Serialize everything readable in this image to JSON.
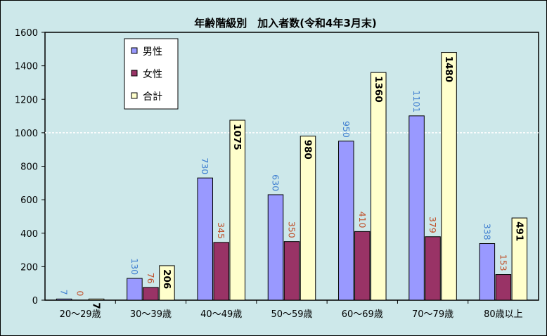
{
  "chart_data": {
    "type": "bar",
    "title": "年齢階級別　加入者数(令和4年3月末)",
    "categories": [
      "20〜29歳",
      "30〜39歳",
      "40〜49歳",
      "50〜59歳",
      "60〜69歳",
      "70〜79歳",
      "80歳以上"
    ],
    "series": [
      {
        "name": "男性",
        "values": [
          7,
          130,
          730,
          630,
          950,
          1101,
          338
        ],
        "color": "#9999ff",
        "label_color": "#3f7fd0"
      },
      {
        "name": "女性",
        "values": [
          0,
          76,
          345,
          350,
          410,
          379,
          153
        ],
        "color": "#993366",
        "label_color": "#c0502a"
      },
      {
        "name": "合計",
        "values": [
          7,
          206,
          1075,
          980,
          1360,
          1480,
          491
        ],
        "color": "#ffffcc",
        "label_color": "#000000"
      }
    ],
    "data_labels": [
      [
        "7",
        "130",
        "730",
        "630",
        "950",
        "1101",
        "338"
      ],
      [
        "0",
        "76",
        "345",
        "350",
        "410",
        "379",
        "153"
      ],
      [
        "7",
        "206",
        "1075",
        "980",
        "1360",
        "1480",
        "491"
      ]
    ],
    "yticks": [
      0,
      200,
      400,
      600,
      800,
      1000,
      1200,
      1400,
      1600
    ],
    "ylim": [
      0,
      1600
    ],
    "grid": false,
    "legend_position": "top-left",
    "plot_background": "#cde8ea"
  }
}
